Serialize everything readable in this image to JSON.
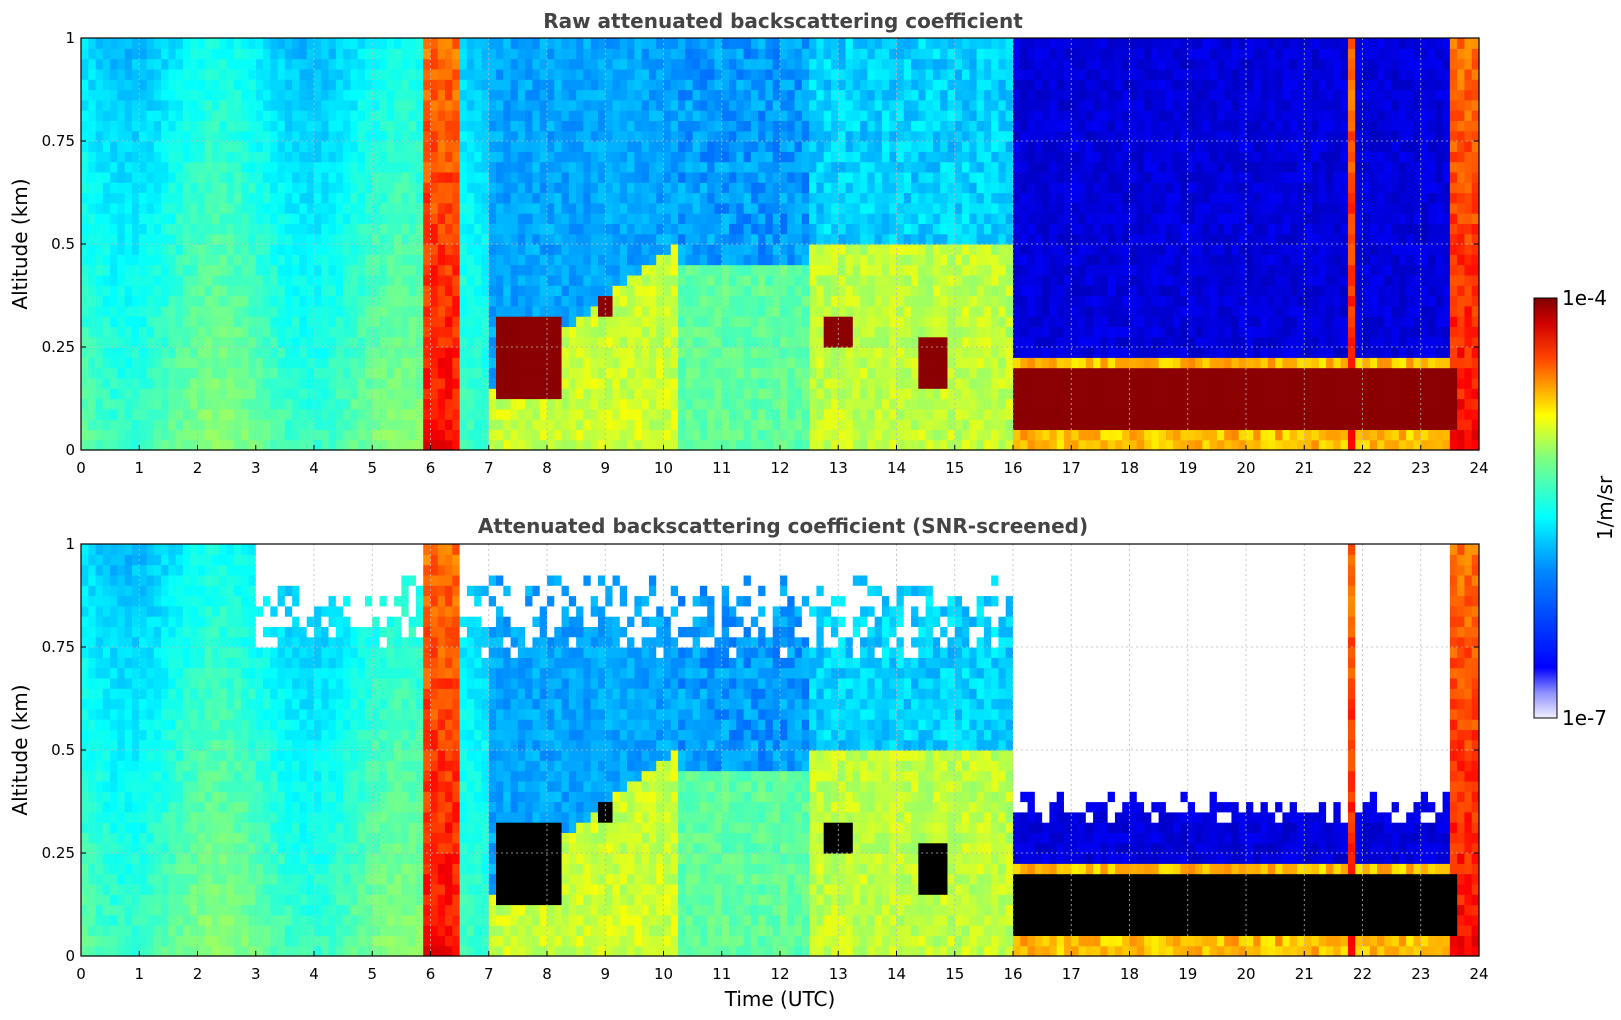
{
  "chart_data": [
    {
      "type": "heatmap",
      "title": "Raw attenuated backscattering coefficient",
      "xlabel": "",
      "ylabel": "Altitude (km)",
      "xlim": [
        0,
        24
      ],
      "ylim": [
        0,
        1
      ],
      "x_ticks": [
        "0",
        "1",
        "2",
        "3",
        "4",
        "5",
        "6",
        "7",
        "8",
        "9",
        "10",
        "11",
        "12",
        "13",
        "14",
        "15",
        "16",
        "17",
        "18",
        "19",
        "20",
        "21",
        "22",
        "23",
        "24"
      ],
      "y_ticks": [
        "0",
        "0.25",
        "0.5",
        "0.75",
        "1"
      ],
      "grid": true,
      "colormap": "jet",
      "mask_low_snr": false,
      "regimes": [
        {
          "start": 0,
          "end": 5.85,
          "regime": "clear"
        },
        {
          "start": 5.85,
          "end": 6.55,
          "regime": "opaque"
        },
        {
          "start": 6.55,
          "end": 7.0,
          "regime": "clear"
        },
        {
          "start": 7.0,
          "end": 10.3,
          "regime": "rising_layer"
        },
        {
          "start": 10.3,
          "end": 12.5,
          "regime": "aerosol"
        },
        {
          "start": 12.5,
          "end": 16.0,
          "regime": "aerosol_high"
        },
        {
          "start": 16.0,
          "end": 21.7,
          "regime": "low_cloud"
        },
        {
          "start": 21.7,
          "end": 21.9,
          "regime": "opaque"
        },
        {
          "start": 21.9,
          "end": 23.55,
          "regime": "low_cloud"
        },
        {
          "start": 23.55,
          "end": 24,
          "regime": "opaque"
        }
      ],
      "features": [
        {
          "time_start": 7.1,
          "time_end": 8.2,
          "altitude_start": 0.12,
          "altitude_end": 0.32,
          "intensity": "max"
        },
        {
          "time_start": 8.9,
          "time_end": 9.1,
          "altitude_start": 0.33,
          "altitude_end": 0.38,
          "intensity": "max"
        },
        {
          "time_start": 12.7,
          "time_end": 13.3,
          "altitude_start": 0.25,
          "altitude_end": 0.33,
          "intensity": "max"
        },
        {
          "time_start": 14.4,
          "time_end": 14.9,
          "altitude_start": 0.15,
          "altitude_end": 0.27,
          "intensity": "max"
        },
        {
          "time_start": 16.0,
          "time_end": 23.6,
          "altitude_start": 0.05,
          "altitude_end": 0.2,
          "intensity": "max"
        }
      ]
    },
    {
      "type": "heatmap",
      "title": "Attenuated backscattering coefficient (SNR-screened)",
      "xlabel": "Time (UTC)",
      "ylabel": "Altitude (km)",
      "xlim": [
        0,
        24
      ],
      "ylim": [
        0,
        1
      ],
      "x_ticks": [
        "0",
        "1",
        "2",
        "3",
        "4",
        "5",
        "6",
        "7",
        "8",
        "9",
        "10",
        "11",
        "12",
        "13",
        "14",
        "15",
        "16",
        "17",
        "18",
        "19",
        "20",
        "21",
        "22",
        "23",
        "24"
      ],
      "y_ticks": [
        "0",
        "0.25",
        "0.5",
        "0.75",
        "1"
      ],
      "grid": true,
      "colormap": "jet",
      "mask_low_snr": true,
      "regimes": [
        {
          "start": 0,
          "end": 5.85,
          "regime": "clear"
        },
        {
          "start": 5.85,
          "end": 6.55,
          "regime": "opaque"
        },
        {
          "start": 6.55,
          "end": 7.0,
          "regime": "clear"
        },
        {
          "start": 7.0,
          "end": 10.3,
          "regime": "rising_layer"
        },
        {
          "start": 10.3,
          "end": 12.5,
          "regime": "aerosol"
        },
        {
          "start": 12.5,
          "end": 16.0,
          "regime": "aerosol_high"
        },
        {
          "start": 16.0,
          "end": 21.7,
          "regime": "low_cloud"
        },
        {
          "start": 21.7,
          "end": 21.9,
          "regime": "opaque"
        },
        {
          "start": 21.9,
          "end": 23.55,
          "regime": "low_cloud"
        },
        {
          "start": 23.55,
          "end": 24,
          "regime": "opaque"
        }
      ],
      "features": [
        {
          "time_start": 7.1,
          "time_end": 8.2,
          "altitude_start": 0.12,
          "altitude_end": 0.32,
          "intensity": "saturated"
        },
        {
          "time_start": 8.9,
          "time_end": 9.1,
          "altitude_start": 0.33,
          "altitude_end": 0.38,
          "intensity": "saturated"
        },
        {
          "time_start": 12.7,
          "time_end": 13.3,
          "altitude_start": 0.25,
          "altitude_end": 0.33,
          "intensity": "saturated"
        },
        {
          "time_start": 14.4,
          "time_end": 14.9,
          "altitude_start": 0.15,
          "altitude_end": 0.27,
          "intensity": "saturated"
        },
        {
          "time_start": 16.0,
          "time_end": 23.6,
          "altitude_start": 0.05,
          "altitude_end": 0.2,
          "intensity": "saturated"
        }
      ]
    }
  ],
  "colorbar": {
    "label": "1/m/sr",
    "max_label": "1e-4",
    "min_label": "1e-7",
    "scale": "log",
    "colors": [
      "#f0f0ff",
      "#0000ff",
      "#00ffff",
      "#ffff00",
      "#ff0000",
      "#800000"
    ]
  }
}
